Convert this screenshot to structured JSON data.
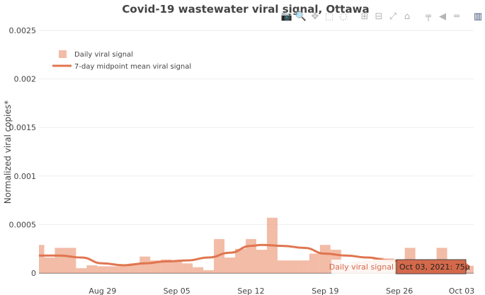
{
  "chart_data": {
    "type": "bar",
    "title": "Covid-19 wastewater viral signal, Ottawa",
    "ylabel": "Normalized viral copies*",
    "xlabel": "",
    "ylim": [
      0,
      0.0025
    ],
    "y_ticks": [
      "0",
      "0.0005",
      "0.001",
      "0.0015",
      "0.002",
      "0.0025"
    ],
    "y_tick_values": [
      0,
      0.0005,
      0.001,
      0.0015,
      0.002,
      0.0025
    ],
    "x_range": [
      "2021-08-23",
      "2021-10-03"
    ],
    "x_ticks": [
      {
        "label": "Aug 29",
        "date": "2021-08-29"
      },
      {
        "label": "Sep 05",
        "date": "2021-09-05"
      },
      {
        "label": "Sep 12",
        "date": "2021-09-12"
      },
      {
        "label": "Sep 19",
        "date": "2021-09-19"
      },
      {
        "label": "Sep 26",
        "date": "2021-09-26"
      },
      {
        "label": "Oct 03",
        "date": "2021-10-03"
      }
    ],
    "grid": true,
    "legend_position": "top-left",
    "series": [
      {
        "name": "Daily viral signal",
        "kind": "bar",
        "color": "#eea58a",
        "x": [
          "2021-08-23",
          "2021-08-24",
          "2021-08-25",
          "2021-08-26",
          "2021-08-27",
          "2021-08-28",
          "2021-08-29",
          "2021-08-30",
          "2021-08-31",
          "2021-09-01",
          "2021-09-02",
          "2021-09-03",
          "2021-09-04",
          "2021-09-05",
          "2021-09-06",
          "2021-09-07",
          "2021-09-08",
          "2021-09-09",
          "2021-09-10",
          "2021-09-11",
          "2021-09-12",
          "2021-09-13",
          "2021-09-14",
          "2021-09-15",
          "2021-09-16",
          "2021-09-17",
          "2021-09-18",
          "2021-09-19",
          "2021-09-20",
          "2021-09-21",
          "2021-09-22",
          "2021-09-23",
          "2021-09-24",
          "2021-09-25",
          "2021-09-26",
          "2021-09-27",
          "2021-09-28",
          "2021-09-29",
          "2021-09-30",
          "2021-10-01",
          "2021-10-02",
          "2021-10-03"
        ],
        "values": [
          0.00029,
          0.00016,
          0.00026,
          0.00026,
          5e-05,
          8e-05,
          7e-05,
          7e-05,
          9e-05,
          0.0001,
          0.00017,
          0.00013,
          0.00014,
          0.00013,
          0.0001,
          6e-05,
          3e-05,
          0.00035,
          0.00016,
          0.00025,
          0.00035,
          0.00024,
          0.00057,
          0.00013,
          0.00013,
          0.00013,
          0.0002,
          0.00029,
          0.00024,
          9e-05,
          0.00012,
          0.00013,
          0.00016,
          0.00015,
          0.00013,
          0.00026,
          0.00014,
          9e-05,
          0.00026,
          0.0001,
          8e-05,
          7.5e-05
        ]
      },
      {
        "name": "7-day midpoint mean viral signal",
        "kind": "line",
        "color": "#e0754f",
        "x": [
          "2021-08-23",
          "2021-08-25",
          "2021-08-27",
          "2021-08-29",
          "2021-08-31",
          "2021-09-02",
          "2021-09-04",
          "2021-09-06",
          "2021-09-08",
          "2021-09-10",
          "2021-09-12",
          "2021-09-13",
          "2021-09-15",
          "2021-09-17",
          "2021-09-19",
          "2021-09-21",
          "2021-09-23",
          "2021-09-25",
          "2021-09-27",
          "2021-09-29"
        ],
        "values": [
          0.00018,
          0.00018,
          0.00016,
          0.0001,
          8e-05,
          0.0001,
          0.00012,
          0.00013,
          0.00016,
          0.00021,
          0.00028,
          0.00029,
          0.00028,
          0.00026,
          0.0002,
          0.00018,
          0.00016,
          0.00013,
          0.00012,
          0.00012
        ]
      }
    ],
    "hover_label": {
      "series_name": "Daily viral signal",
      "text": "Oct 03, 2021: 75µ"
    }
  },
  "modebar": {
    "icons": [
      "camera-icon",
      "zoom-icon",
      "pan-icon",
      "box-select-icon",
      "lasso-icon",
      "zoom-in-icon",
      "zoom-out-icon",
      "autoscale-icon",
      "home-icon",
      "spike-lines-icon",
      "hover-closest-icon",
      "hover-compare-icon",
      "plotly-logo-icon"
    ],
    "glyphs": [
      "📷",
      "🔍",
      "✥",
      "⬚",
      "◌",
      "⊞",
      "⊟",
      "⤢",
      "⌂",
      "╤",
      "◀",
      "═",
      "▥"
    ]
  }
}
